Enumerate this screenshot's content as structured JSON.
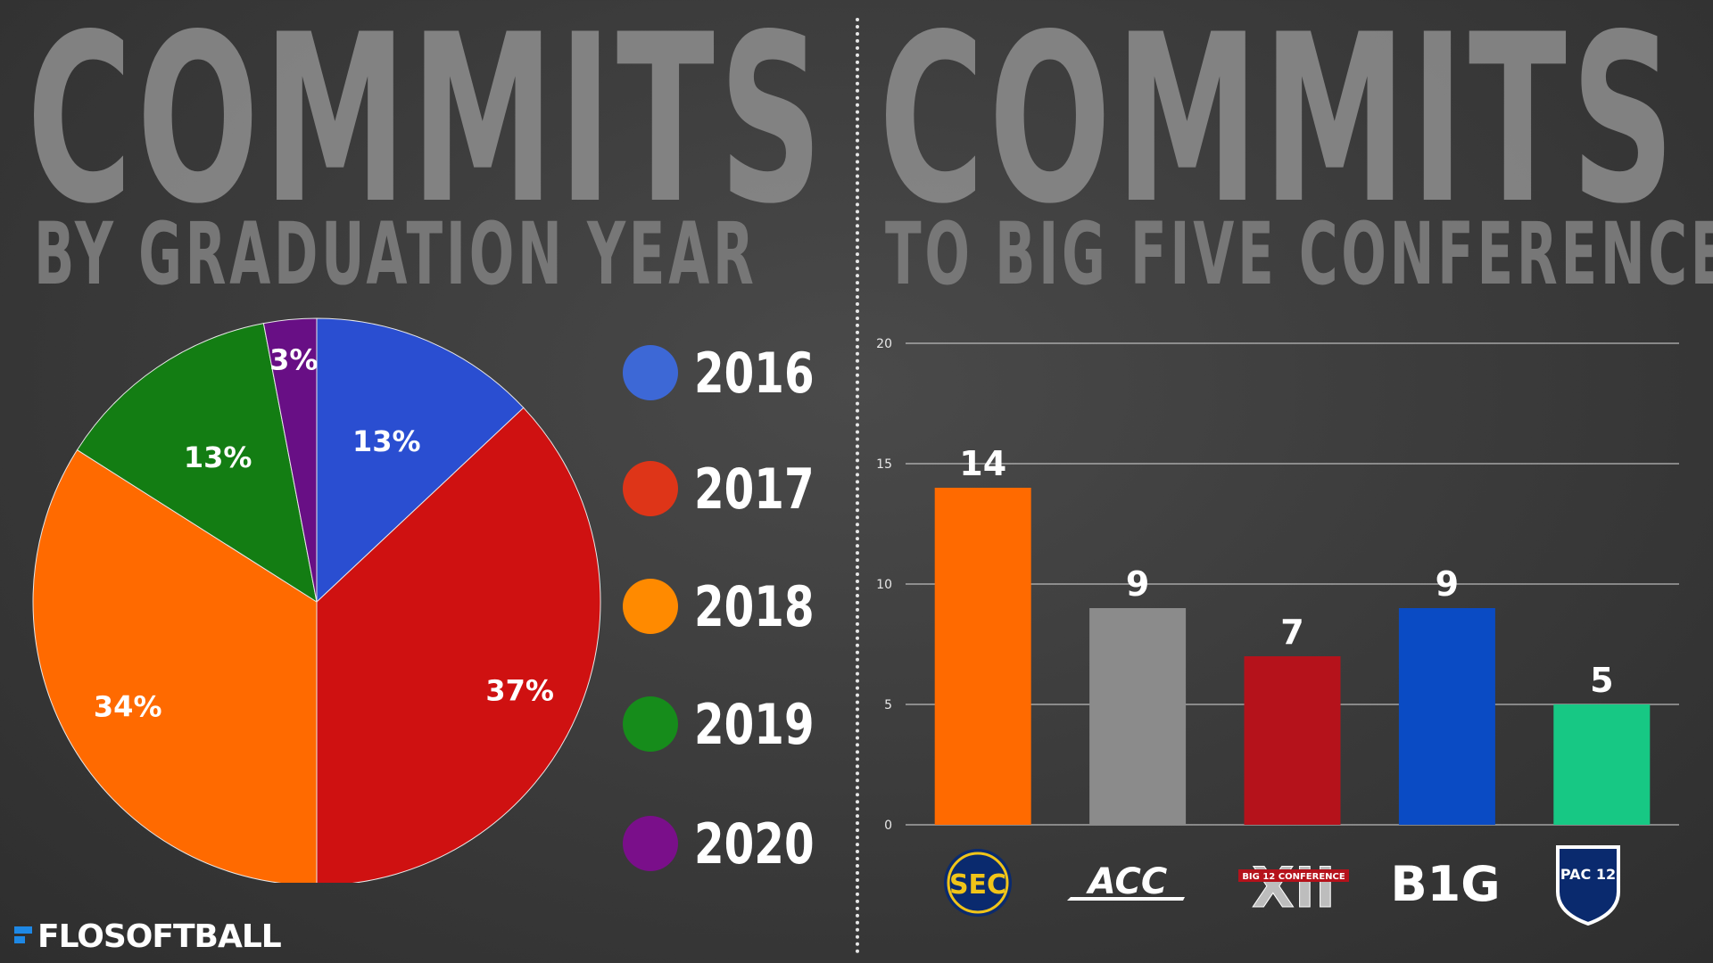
{
  "left_title": "COMMITS",
  "left_subtitle": "BY GRADUATION YEAR",
  "right_title": "COMMITS",
  "right_subtitle": "TO BIG FIVE CONFERENCES",
  "brand": {
    "part1": "FLO",
    "part2": "SOFTBALL"
  },
  "colors": {
    "2016": "#2a4ed1",
    "2017": "#cf1111",
    "2018": "#ff6a00",
    "2019": "#137d13",
    "2020": "#680f85"
  },
  "chart_data": [
    {
      "type": "pie",
      "title": "BY GRADUATION YEAR",
      "slices": [
        {
          "label": "2016",
          "value": 13,
          "display": "13%",
          "color": "#2a4ed1"
        },
        {
          "label": "2017",
          "value": 37,
          "display": "37%",
          "color": "#cf1111"
        },
        {
          "label": "2018",
          "value": 34,
          "display": "34%",
          "color": "#ff6a00"
        },
        {
          "label": "2019",
          "value": 13,
          "display": "13%",
          "color": "#137d13"
        },
        {
          "label": "2020",
          "value": 3,
          "display": "3%",
          "color": "#680f85"
        }
      ],
      "legend": {
        "placement": "right",
        "items": [
          {
            "label": "2016",
            "color": "#3d68d6"
          },
          {
            "label": "2017",
            "color": "#de3518"
          },
          {
            "label": "2018",
            "color": "#ff8a00"
          },
          {
            "label": "2019",
            "color": "#168c1b"
          },
          {
            "label": "2020",
            "color": "#7a0f8a"
          }
        ]
      }
    },
    {
      "type": "bar",
      "title": "TO BIG FIVE CONFERENCES",
      "categories": [
        "SEC",
        "ACC",
        "Big 12",
        "Big Ten",
        "Pac-12"
      ],
      "values": [
        14,
        9,
        7,
        9,
        5
      ],
      "value_labels": [
        "14",
        "9",
        "7",
        "9",
        "5"
      ],
      "colors": [
        "#ff6a00",
        "#8b8b8b",
        "#b5121b",
        "#0a4bc4",
        "#17c884"
      ],
      "ylim": [
        0,
        20
      ],
      "yticks": [
        "0",
        "5",
        "10",
        "15",
        "20"
      ],
      "grid": true,
      "category_logos": [
        "SEC",
        "ACC",
        "XII",
        "B1G",
        "PAC 12"
      ],
      "big12_banner": "BIG 12 CONFERENCE"
    }
  ]
}
